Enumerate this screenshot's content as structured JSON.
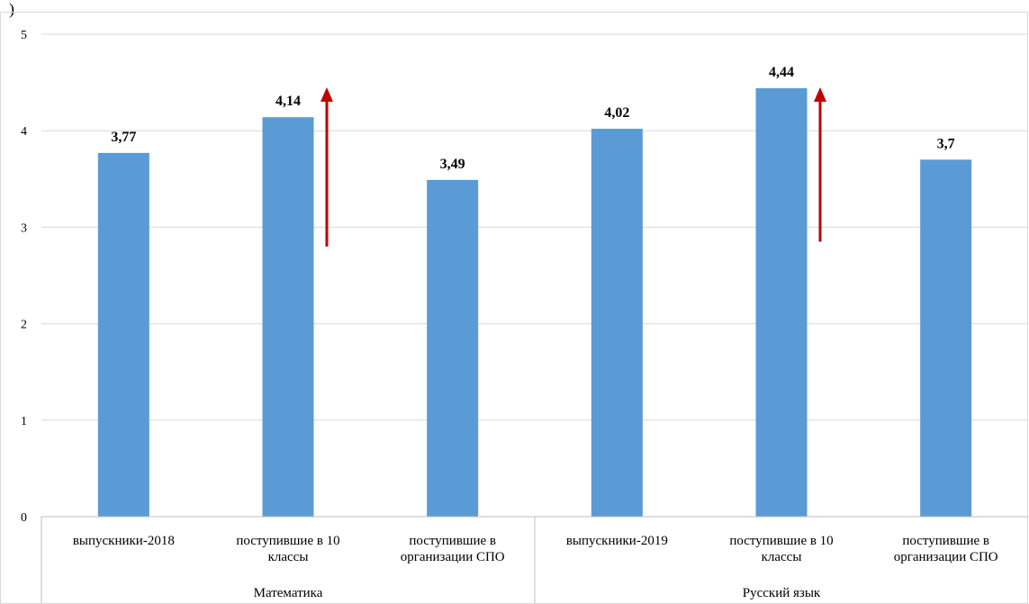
{
  "chart_data": {
    "type": "bar",
    "title": "",
    "xlabel": "",
    "ylabel": "",
    "ylim": [
      0,
      5
    ],
    "yticks": [
      "0",
      "1",
      "2",
      "3",
      "4",
      "5"
    ],
    "grid": true,
    "legend": "none",
    "groups": [
      {
        "label": "Математика",
        "categories": [
          [
            "выпускники-2018"
          ],
          [
            "поступившие в 10",
            "классы"
          ],
          [
            "поступившие в",
            "организации СПО"
          ]
        ],
        "values": [
          3.77,
          4.14,
          3.49
        ],
        "labels": [
          "3,77",
          "4,14",
          "3,49"
        ]
      },
      {
        "label": "Русский язык",
        "categories": [
          [
            "выпускники-2019"
          ],
          [
            "поступившие в 10",
            "классы"
          ],
          [
            "поступившие в",
            "организации СПО"
          ]
        ],
        "values": [
          4.02,
          4.44,
          3.7
        ],
        "labels": [
          "4,02",
          "4,44",
          "3,7"
        ]
      }
    ],
    "arrows": [
      {
        "group": 0,
        "category": 1,
        "from": 2.8,
        "to": 4.45,
        "direction": "up"
      },
      {
        "group": 1,
        "category": 1,
        "from": 2.85,
        "to": 4.45,
        "direction": "up"
      }
    ],
    "colors": {
      "bar": "#5b9bd5",
      "arrow": "#c00000",
      "grid": "#d9d9d9",
      "axis": "#bfbfbf"
    }
  },
  "top_fragment": ")"
}
